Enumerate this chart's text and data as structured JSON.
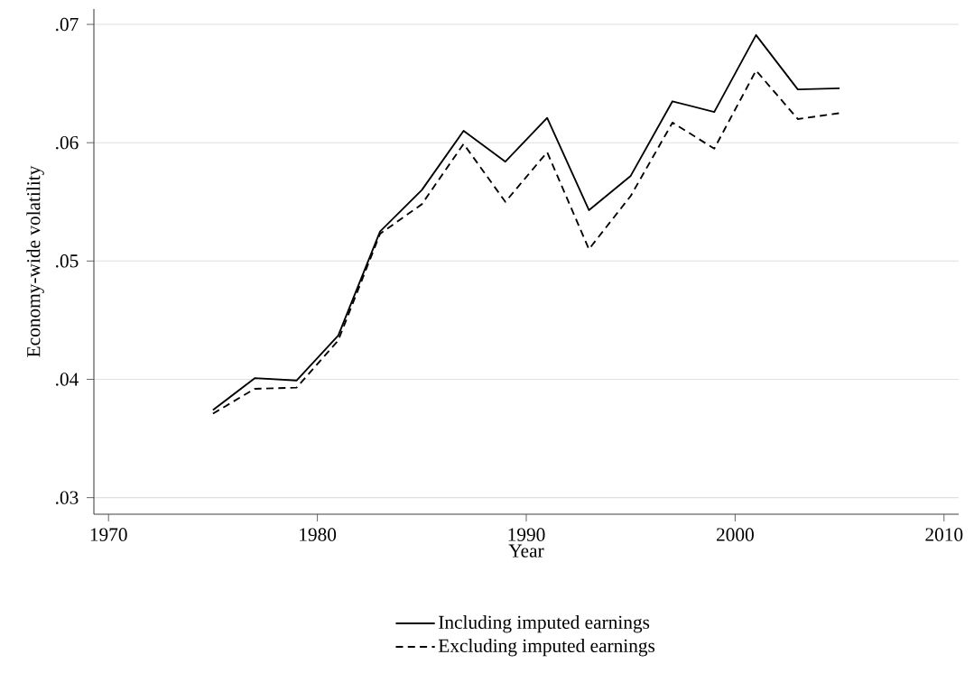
{
  "chart_data": {
    "type": "line",
    "xlabel": "Year",
    "ylabel": "Economy-wide volatility",
    "x": [
      1975,
      1977,
      1979,
      1981,
      1983,
      1985,
      1987,
      1989,
      1991,
      1993,
      1995,
      1997,
      1999,
      2001,
      2003,
      2005
    ],
    "series": [
      {
        "name": "Including imputed earnings",
        "color": "#000000",
        "line_style": "solid",
        "values": [
          0.0374,
          0.0401,
          0.0399,
          0.0437,
          0.0525,
          0.056,
          0.061,
          0.0584,
          0.0621,
          0.0543,
          0.0572,
          0.0635,
          0.0626,
          0.0691,
          0.0645,
          0.0646
        ]
      },
      {
        "name": "Excluding imputed earnings",
        "color": "#000000",
        "line_style": "dashed",
        "values": [
          0.0371,
          0.0392,
          0.0393,
          0.0433,
          0.0523,
          0.0548,
          0.0599,
          0.055,
          0.0592,
          0.051,
          0.0555,
          0.0617,
          0.0595,
          0.0661,
          0.062,
          0.0625
        ]
      }
    ],
    "xlim": [
      1969.3,
      2010.7
    ],
    "ylim": [
      0.0286,
      0.0713
    ],
    "xticks": [
      1970,
      1980,
      1990,
      2000,
      2010
    ],
    "yticks": [
      {
        "value": 0.03,
        "label": ".03"
      },
      {
        "value": 0.04,
        "label": ".04"
      },
      {
        "value": 0.05,
        "label": ".05"
      },
      {
        "value": 0.06,
        "label": ".06"
      },
      {
        "value": 0.07,
        "label": ".07"
      }
    ],
    "grid": "y",
    "legend": "bottom"
  }
}
